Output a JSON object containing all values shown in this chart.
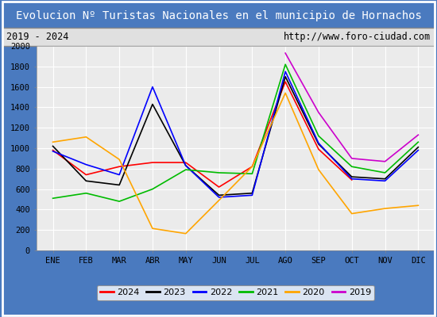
{
  "title": "Evolucion Nº Turistas Nacionales en el municipio de Hornachos",
  "subtitle_left": "2019 - 2024",
  "subtitle_right": "http://www.foro-ciudad.com",
  "months": [
    "ENE",
    "FEB",
    "MAR",
    "ABR",
    "MAY",
    "JUN",
    "JUL",
    "AGO",
    "SEP",
    "OCT",
    "NOV",
    "DIC"
  ],
  "ylim": [
    0,
    2000
  ],
  "yticks": [
    0,
    200,
    400,
    600,
    800,
    1000,
    1200,
    1400,
    1600,
    1800,
    2000
  ],
  "series": {
    "2024": {
      "color": "#ff0000",
      "data": [
        980,
        740,
        820,
        860,
        860,
        620,
        820,
        1650,
        990,
        690,
        null,
        null
      ]
    },
    "2023": {
      "color": "#000000",
      "data": [
        1020,
        680,
        640,
        1430,
        830,
        540,
        560,
        1700,
        1040,
        720,
        700,
        1010
      ]
    },
    "2022": {
      "color": "#0000ff",
      "data": [
        970,
        840,
        740,
        1600,
        830,
        520,
        540,
        1750,
        1050,
        700,
        680,
        980
      ]
    },
    "2021": {
      "color": "#00bb00",
      "data": [
        510,
        560,
        480,
        600,
        790,
        760,
        750,
        1820,
        1120,
        820,
        760,
        1060
      ]
    },
    "2020": {
      "color": "#ffa500",
      "data": [
        1060,
        1110,
        890,
        215,
        165,
        490,
        820,
        1540,
        790,
        360,
        410,
        440
      ]
    },
    "2019": {
      "color": "#cc00cc",
      "data": [
        null,
        null,
        null,
        null,
        null,
        null,
        null,
        1930,
        1350,
        900,
        870,
        1130
      ]
    }
  },
  "legend_order": [
    "2024",
    "2023",
    "2022",
    "2021",
    "2020",
    "2019"
  ],
  "title_bg_color": "#4a7abf",
  "title_text_color": "#ffffff",
  "plot_bg_color": "#ebebeb",
  "grid_color": "#ffffff",
  "outer_border_color": "#4a7abf",
  "subtitle_bg_color": "#e0e0e0",
  "subtitle_border_color": "#888888"
}
